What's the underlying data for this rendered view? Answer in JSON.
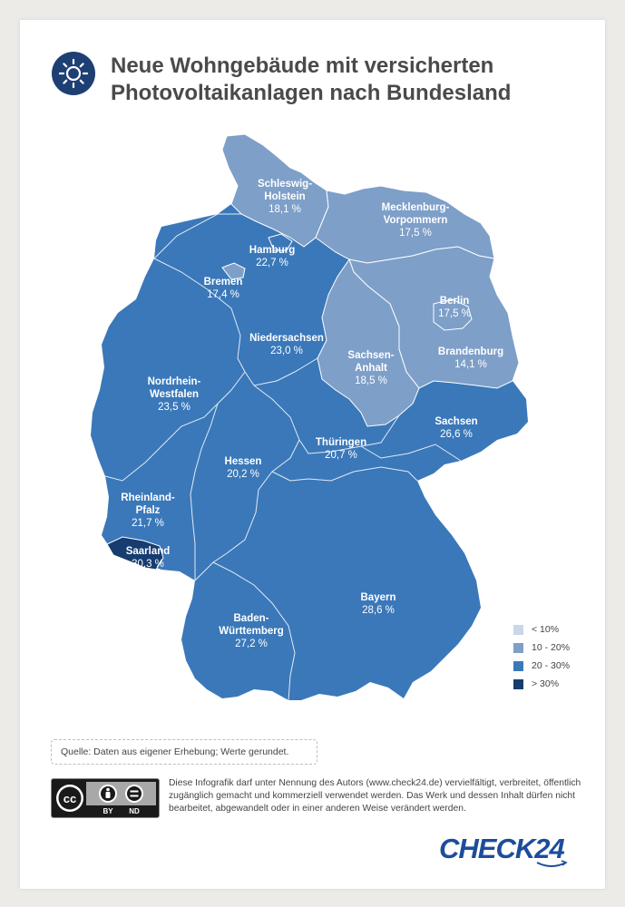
{
  "title": "Neue Wohngebäude mit versicherten Photovoltaikanlagen nach Bundesland",
  "icons": {
    "header": "sun-icon",
    "license": "creative-commons-icon"
  },
  "colors": {
    "lt10": "#c9d8e8",
    "c10_20": "#7e9fc8",
    "c20_30": "#3a78b9",
    "gt30": "#163c70",
    "brand": "#1d4d9a"
  },
  "states": [
    {
      "id": "schleswig-holstein",
      "name_lines": [
        "Schleswig-",
        "Holstein"
      ],
      "value": "18,1 %",
      "category": "c10_20"
    },
    {
      "id": "mecklenburg-vorpommern",
      "name_lines": [
        "Mecklenburg-",
        "Vorpommern"
      ],
      "value": "17,5 %",
      "category": "c10_20"
    },
    {
      "id": "hamburg",
      "name_lines": [
        "Hamburg"
      ],
      "value": "22,7 %",
      "category": "c20_30"
    },
    {
      "id": "bremen",
      "name_lines": [
        "Bremen"
      ],
      "value": "17,4 %",
      "category": "c10_20"
    },
    {
      "id": "niedersachsen",
      "name_lines": [
        "Niedersachsen"
      ],
      "value": "23,0 %",
      "category": "c20_30"
    },
    {
      "id": "berlin",
      "name_lines": [
        "Berlin"
      ],
      "value": "17,5 %",
      "category": "c10_20"
    },
    {
      "id": "brandenburg",
      "name_lines": [
        "Brandenburg"
      ],
      "value": "14,1 %",
      "category": "c10_20"
    },
    {
      "id": "sachsen-anhalt",
      "name_lines": [
        "Sachsen-",
        "Anhalt"
      ],
      "value": "18,5 %",
      "category": "c10_20"
    },
    {
      "id": "nordrhein-westfalen",
      "name_lines": [
        "Nordrhein-",
        "Westfalen"
      ],
      "value": "23,5 %",
      "category": "c20_30"
    },
    {
      "id": "sachsen",
      "name_lines": [
        "Sachsen"
      ],
      "value": "26,6 %",
      "category": "c20_30"
    },
    {
      "id": "thueringen",
      "name_lines": [
        "Thüringen"
      ],
      "value": "20,7 %",
      "category": "c20_30"
    },
    {
      "id": "hessen",
      "name_lines": [
        "Hessen"
      ],
      "value": "20,2 %",
      "category": "c20_30"
    },
    {
      "id": "rheinland-pfalz",
      "name_lines": [
        "Rheinland-",
        "Pfalz"
      ],
      "value": "21,7 %",
      "category": "c20_30"
    },
    {
      "id": "saarland",
      "name_lines": [
        "Saarland"
      ],
      "value": "30,3 %",
      "category": "gt30"
    },
    {
      "id": "bayern",
      "name_lines": [
        "Bayern"
      ],
      "value": "28,6 %",
      "category": "c20_30"
    },
    {
      "id": "baden-wuerttemberg",
      "name_lines": [
        "Baden-",
        "Württemberg"
      ],
      "value": "27,2 %",
      "category": "c20_30"
    }
  ],
  "legend": [
    {
      "label": "< 10%",
      "category": "lt10"
    },
    {
      "label": "10 - 20%",
      "category": "c10_20"
    },
    {
      "label": "20 - 30%",
      "category": "c20_30"
    },
    {
      "label": "> 30%",
      "category": "gt30"
    }
  ],
  "source": "Quelle: Daten aus eigener Erhebung; Werte gerundet.",
  "license": {
    "badge": {
      "cc": "cc",
      "by": "BY",
      "nd": "ND"
    },
    "text": "Diese Infografik darf unter Nennung des Autors (www.check24.de) vervielfältigt, verbreitet, öffentlich zugänglich gemacht und kommerziell verwendet werden. Das Werk und dessen Inhalt dürfen nicht bearbeitet, abgewandelt oder in einer anderen Weise verändert werden."
  },
  "brand": "CHECK24"
}
